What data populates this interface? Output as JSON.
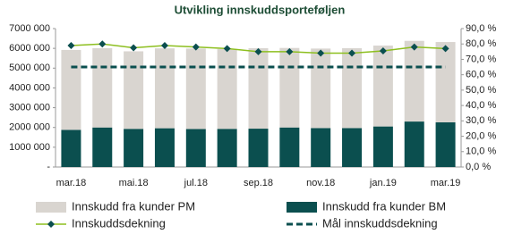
{
  "chart_data": {
    "type": "bar-line",
    "title": "Utvikling innskuddsporteføljen",
    "categories": [
      "mar.18",
      null,
      "mai.18",
      null,
      "jul.18",
      null,
      "sep.18",
      null,
      "nov.18",
      null,
      "jan.19",
      null,
      "mar.19"
    ],
    "series": [
      {
        "name": "Innskudd fra kunder PM",
        "type": "bar",
        "color": "#d9d5d0",
        "values": [
          4040000,
          4010000,
          3920000,
          4040000,
          4070000,
          4040000,
          4070000,
          4020000,
          4020000,
          4040000,
          4090000,
          4080000,
          4060000
        ]
      },
      {
        "name": "Innskudd fra kunder BM",
        "type": "bar",
        "color": "#0b4f4f",
        "values": [
          1880000,
          2000000,
          1930000,
          1960000,
          1920000,
          1930000,
          1940000,
          2000000,
          1970000,
          1970000,
          2050000,
          2300000,
          2260000
        ]
      },
      {
        "name": "Innskuddsdekning",
        "type": "line",
        "axis": "y2",
        "color": "#8dbf1f",
        "marker_color": "#0b4f4f",
        "values": [
          79,
          80,
          77.5,
          79,
          78,
          77,
          75,
          75,
          74,
          74,
          75.5,
          78,
          77
        ]
      },
      {
        "name": "Mål innskuddsdekning",
        "type": "dashed",
        "axis": "y2",
        "color": "#0b4f4f",
        "values": [
          65,
          65,
          65,
          65,
          65,
          65,
          65,
          65,
          65,
          65,
          65,
          65,
          65
        ]
      }
    ],
    "ylim": [
      0,
      7000000
    ],
    "yticks": [
      {
        "value": 0,
        "label": "-"
      },
      {
        "value": 1000000,
        "label": "1000 000"
      },
      {
        "value": 2000000,
        "label": "2000 000"
      },
      {
        "value": 3000000,
        "label": "3000 000"
      },
      {
        "value": 4000000,
        "label": "4000 000"
      },
      {
        "value": 5000000,
        "label": "5000 000"
      },
      {
        "value": 6000000,
        "label": "6000 000"
      },
      {
        "value": 7000000,
        "label": "7000 000"
      }
    ],
    "y2lim": [
      0,
      90
    ],
    "y2ticks": [
      {
        "value": 0,
        "label": "0,0 %"
      },
      {
        "value": 10,
        "label": "10,0 %"
      },
      {
        "value": 20,
        "label": "20,0 %"
      },
      {
        "value": 30,
        "label": "30,0 %"
      },
      {
        "value": 40,
        "label": "40,0 %"
      },
      {
        "value": 50,
        "label": "50,0 %"
      },
      {
        "value": 60,
        "label": "60,0 %"
      },
      {
        "value": 70,
        "label": "70,0 %"
      },
      {
        "value": 80,
        "label": "80,0 %"
      },
      {
        "value": 90,
        "label": "90,0 %"
      }
    ]
  }
}
